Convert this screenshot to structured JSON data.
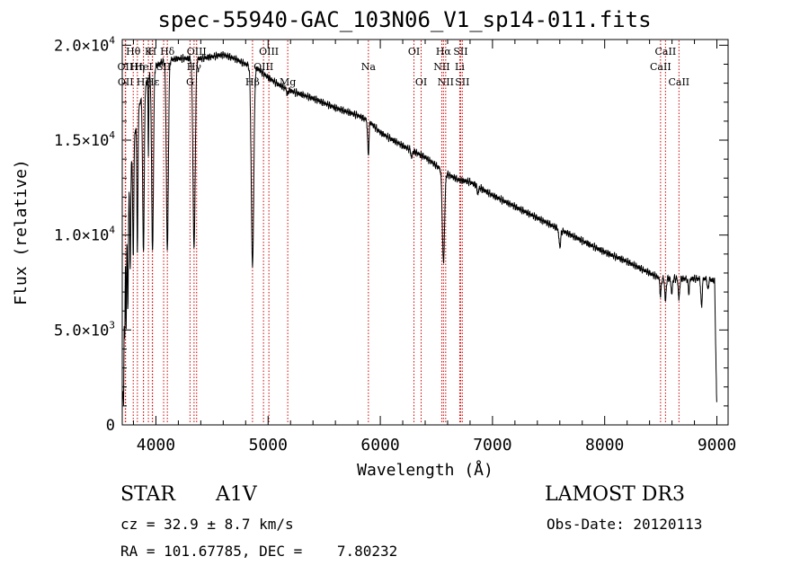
{
  "title": "spec-55940-GAC_103N06_V1_sp14-011.fits",
  "info": {
    "class": "STAR",
    "subclass": "A1V",
    "survey": "LAMOST DR3",
    "cz_label": "cz = 32.9 ± 8.7 km/s",
    "obs_date": "Obs-Date: 20120113",
    "coords": "RA = 101.67785, DEC =    7.80232"
  },
  "colors": {
    "line": "#000000",
    "marker": "#cc0000"
  },
  "chart_data": {
    "type": "line",
    "title": "spec-55940-GAC_103N06_V1_sp14-011.fits",
    "xlabel": "Wavelength (Å)",
    "ylabel": "Flux (relative)",
    "xlim": [
      3700,
      9100
    ],
    "ylim": [
      0,
      20300
    ],
    "x_ticks": [
      4000,
      5000,
      6000,
      7000,
      8000,
      9000
    ],
    "x_tick_labels": [
      "4000",
      "5000",
      "6000",
      "7000",
      "8000",
      "9000"
    ],
    "y_ticks": [
      0,
      5000,
      10000,
      15000,
      20000
    ],
    "y_tick_labels": [
      {
        "mant": "0",
        "exp": ""
      },
      {
        "mant": "5.0×10",
        "exp": "3"
      },
      {
        "mant": "1.0×10",
        "exp": "4"
      },
      {
        "mant": "1.5×10",
        "exp": "4"
      },
      {
        "mant": "2.0×10",
        "exp": "4"
      }
    ],
    "continuum": [
      [
        3705,
        1500
      ],
      [
        3712,
        7000
      ],
      [
        3730,
        9500
      ],
      [
        3760,
        12500
      ],
      [
        3800,
        15000
      ],
      [
        3850,
        16800
      ],
      [
        3900,
        17800
      ],
      [
        3950,
        18500
      ],
      [
        4000,
        18900
      ],
      [
        4050,
        19100
      ],
      [
        4100,
        19200
      ],
      [
        4200,
        19300
      ],
      [
        4300,
        19300
      ],
      [
        4400,
        19300
      ],
      [
        4500,
        19400
      ],
      [
        4600,
        19500
      ],
      [
        4700,
        19300
      ],
      [
        4800,
        19000
      ],
      [
        4900,
        18800
      ],
      [
        5000,
        18300
      ],
      [
        5100,
        17900
      ],
      [
        5200,
        17600
      ],
      [
        5400,
        17200
      ],
      [
        5600,
        16700
      ],
      [
        5800,
        16300
      ],
      [
        5900,
        16000
      ],
      [
        6000,
        15400
      ],
      [
        6200,
        14700
      ],
      [
        6400,
        14100
      ],
      [
        6600,
        13200
      ],
      [
        6700,
        12900
      ],
      [
        6800,
        12800
      ],
      [
        7000,
        12100
      ],
      [
        7200,
        11500
      ],
      [
        7400,
        10900
      ],
      [
        7600,
        10300
      ],
      [
        7800,
        9700
      ],
      [
        8000,
        9100
      ],
      [
        8200,
        8600
      ],
      [
        8400,
        8000
      ],
      [
        8500,
        7700
      ],
      [
        8700,
        7700
      ],
      [
        8900,
        7700
      ],
      [
        8980,
        7600
      ],
      [
        8998,
        1200
      ]
    ],
    "absorption": [
      {
        "w": 3712,
        "depth": 5500,
        "width": 3
      },
      {
        "w": 3722,
        "depth": 4000,
        "width": 3
      },
      {
        "w": 3735,
        "depth": 5000,
        "width": 3
      },
      {
        "w": 3750,
        "depth": 5500,
        "width": 4
      },
      {
        "w": 3771,
        "depth": 5000,
        "width": 4
      },
      {
        "w": 3798,
        "depth": 6000,
        "width": 5
      },
      {
        "w": 3835,
        "depth": 7000,
        "width": 5
      },
      {
        "w": 3889,
        "depth": 8500,
        "width": 7
      },
      {
        "w": 3933,
        "depth": 4000,
        "width": 3
      },
      {
        "w": 3970,
        "depth": 9500,
        "width": 8
      },
      {
        "w": 4102,
        "depth": 10000,
        "width": 9
      },
      {
        "w": 4340,
        "depth": 10000,
        "width": 10
      },
      {
        "w": 4861,
        "depth": 10500,
        "width": 11
      },
      {
        "w": 5172,
        "depth": 300,
        "width": 6
      },
      {
        "w": 5893,
        "depth": 1800,
        "width": 6
      },
      {
        "w": 6280,
        "depth": 400,
        "width": 6
      },
      {
        "w": 6563,
        "depth": 4800,
        "width": 10
      },
      {
        "w": 6870,
        "depth": 400,
        "width": 6
      },
      {
        "w": 7600,
        "depth": 900,
        "width": 8
      },
      {
        "w": 8498,
        "depth": 900,
        "width": 6
      },
      {
        "w": 8542,
        "depth": 1200,
        "width": 6
      },
      {
        "w": 8598,
        "depth": 800,
        "width": 6
      },
      {
        "w": 8662,
        "depth": 1100,
        "width": 6
      },
      {
        "w": 8750,
        "depth": 700,
        "width": 6
      },
      {
        "w": 8863,
        "depth": 1500,
        "width": 6
      },
      {
        "w": 8920,
        "depth": 600,
        "width": 5
      }
    ],
    "lines": [
      {
        "label": "Hθ",
        "w": 3798,
        "row": 0
      },
      {
        "label": "OII",
        "w": 3727,
        "row": 1
      },
      {
        "label": "OII",
        "w": 3730,
        "row": 2
      },
      {
        "label": "Hη",
        "w": 3835,
        "row": 1
      },
      {
        "label": "Hζ",
        "w": 3889,
        "row": 2
      },
      {
        "label": "HeI",
        "w": 3889,
        "row": 1
      },
      {
        "label": "K",
        "w": 3933,
        "row": 0
      },
      {
        "label": "H",
        "w": 3968,
        "row": 0
      },
      {
        "label": "Hε",
        "w": 3970,
        "row": 2
      },
      {
        "label": "SII",
        "w": 4069,
        "row": 1
      },
      {
        "label": "Hδ",
        "w": 4102,
        "row": 0
      },
      {
        "label": "G",
        "w": 4304,
        "row": 2
      },
      {
        "label": "Hγ",
        "w": 4340,
        "row": 1
      },
      {
        "label": "OIII",
        "w": 4363,
        "row": 0
      },
      {
        "label": "Hβ",
        "w": 4861,
        "row": 2
      },
      {
        "label": "OIII",
        "w": 4959,
        "row": 1
      },
      {
        "label": "OIII",
        "w": 5007,
        "row": 0
      },
      {
        "label": "Mg",
        "w": 5175,
        "row": 2
      },
      {
        "label": "Na",
        "w": 5894,
        "row": 1
      },
      {
        "label": "OI",
        "w": 6300,
        "row": 0
      },
      {
        "label": "OI",
        "w": 6364,
        "row": 2
      },
      {
        "label": "NII",
        "w": 6548,
        "row": 1
      },
      {
        "label": "Hα",
        "w": 6563,
        "row": 0
      },
      {
        "label": "NII",
        "w": 6583,
        "row": 2
      },
      {
        "label": "Li",
        "w": 6708,
        "row": 1
      },
      {
        "label": "SII",
        "w": 6716,
        "row": 0
      },
      {
        "label": "SII",
        "w": 6731,
        "row": 2
      },
      {
        "label": "CaII",
        "w": 8498,
        "row": 1
      },
      {
        "label": "CaII",
        "w": 8542,
        "row": 0
      },
      {
        "label": "CaII",
        "w": 8662,
        "row": 2
      }
    ]
  }
}
